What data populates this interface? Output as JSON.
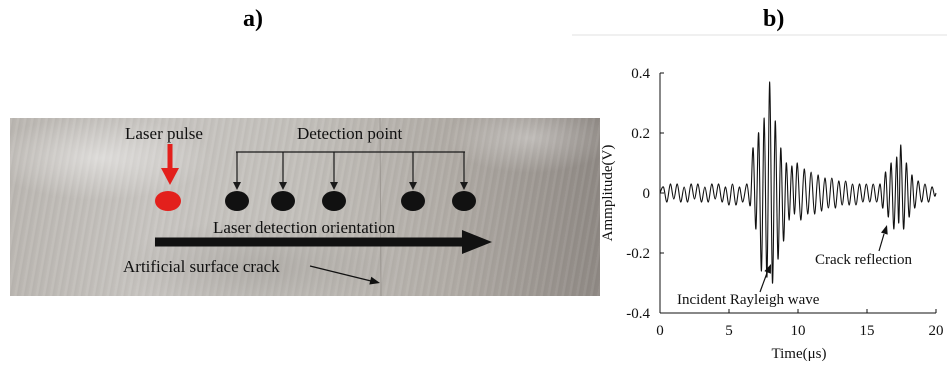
{
  "panel_a": {
    "label": "a)",
    "laser_pulse": "Laser pulse",
    "detection_point": "Detection point",
    "orientation": "Laser detection orientation",
    "crack": "Artificial surface crack",
    "colors": {
      "laser": "#e3201c",
      "detection": "#111111"
    }
  },
  "panel_b": {
    "label": "b)"
  },
  "chart_data": {
    "type": "line",
    "title": "",
    "xlabel": "Time(μs)",
    "ylabel": "Ammplitude(V)",
    "xlim": [
      0,
      20
    ],
    "ylim": [
      -0.4,
      0.4
    ],
    "xticks": [
      "0",
      "5",
      "10",
      "15",
      "20"
    ],
    "yticks": [
      "0.4",
      "0.2",
      "0",
      "-0.2",
      "-0.4"
    ],
    "grid": false,
    "annotations": [
      "Incident Rayleigh wave",
      "Crack reflection"
    ],
    "series": [
      {
        "x": [
          0,
          0.25,
          0.5,
          0.75,
          1.0,
          1.25,
          1.5,
          1.75,
          2.0,
          2.25,
          2.5,
          2.75,
          3.0,
          3.25,
          3.5,
          3.75,
          4.0,
          4.25,
          4.5,
          4.75,
          5.0,
          5.25,
          5.5,
          5.75,
          6.0,
          6.3,
          6.55,
          6.75,
          6.95,
          7.15,
          7.35,
          7.55,
          7.75,
          7.95,
          8.15,
          8.35,
          8.55,
          8.75,
          8.95,
          9.15,
          9.35,
          9.55,
          9.75,
          9.95,
          10.2,
          10.45,
          10.7,
          10.95,
          11.2,
          11.45,
          11.7,
          11.95,
          12.2,
          12.45,
          12.7,
          12.95,
          13.2,
          13.45,
          13.7,
          13.95,
          14.2,
          14.45,
          14.7,
          14.95,
          15.2,
          15.45,
          15.7,
          15.95,
          16.15,
          16.35,
          16.55,
          16.75,
          16.95,
          17.15,
          17.3,
          17.45,
          17.65,
          17.85,
          18.05,
          18.25,
          18.45,
          18.7,
          18.95,
          19.2,
          19.45,
          19.7,
          19.9,
          20.0
        ],
        "y": [
          0,
          0.02,
          -0.03,
          0.03,
          -0.02,
          0.03,
          -0.03,
          0.02,
          -0.03,
          0.03,
          -0.02,
          0.03,
          -0.03,
          0.02,
          -0.03,
          0.03,
          -0.02,
          0.03,
          -0.03,
          0.02,
          -0.04,
          0.03,
          -0.04,
          0.02,
          -0.03,
          0.03,
          -0.04,
          0.15,
          -0.12,
          0.2,
          -0.26,
          0.25,
          -0.28,
          0.37,
          -0.3,
          0.24,
          -0.22,
          0.15,
          -0.16,
          0.1,
          -0.09,
          0.09,
          -0.07,
          0.1,
          -0.09,
          0.08,
          -0.07,
          0.07,
          -0.07,
          0.06,
          -0.06,
          0.05,
          -0.05,
          0.05,
          -0.05,
          0.04,
          -0.04,
          0.04,
          -0.04,
          0.03,
          -0.04,
          0.03,
          -0.03,
          0.03,
          -0.03,
          0.03,
          -0.03,
          0.03,
          -0.05,
          0.07,
          -0.08,
          0.1,
          -0.12,
          0.12,
          -0.1,
          0.16,
          -0.12,
          0.1,
          -0.08,
          0.06,
          -0.05,
          0.04,
          -0.03,
          0.03,
          -0.03,
          0.02,
          -0.01,
          0
        ]
      }
    ]
  }
}
